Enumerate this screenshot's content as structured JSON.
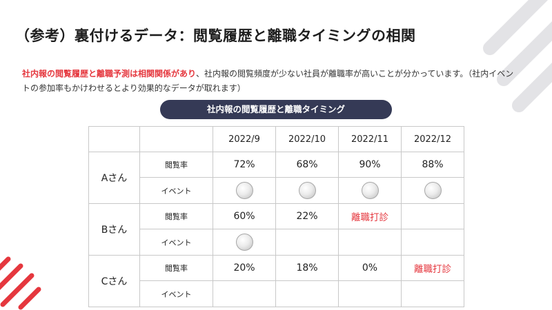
{
  "title": "（参考）裏付けるデータ：閲覧履歴と離職タイミングの相関",
  "description": {
    "highlight": "社内報の閲覧履歴と離職予測は相関関係があり",
    "rest": "、社内報の閲覧頻度が少ない社員が離職率が高いことが分かっています。（社内イベントの参加率もかけわせるとより効果的なデータが取れます）"
  },
  "table_title": "社内報の閲覧履歴と離職タイミング",
  "months": [
    "2022/9",
    "2022/10",
    "2022/11",
    "2022/12"
  ],
  "row_labels": {
    "view": "閲覧率",
    "event": "イベント"
  },
  "people": [
    {
      "name": "Aさん",
      "view": [
        "72%",
        "68%",
        "90%",
        "88%"
      ],
      "event": [
        true,
        true,
        true,
        true
      ]
    },
    {
      "name": "Bさん",
      "view": [
        "60%",
        "22%",
        "離職打診",
        ""
      ],
      "event": [
        true,
        false,
        false,
        false
      ]
    },
    {
      "name": "Cさん",
      "view": [
        "20%",
        "18%",
        "0%",
        "離職打診"
      ],
      "event": [
        false,
        false,
        false,
        false
      ]
    }
  ],
  "colors": {
    "accent": "#e5373e",
    "pill": "#353a56",
    "deco_gray": "#e3e3e6"
  },
  "icons": {
    "event_marker": "participation-dot-icon"
  }
}
